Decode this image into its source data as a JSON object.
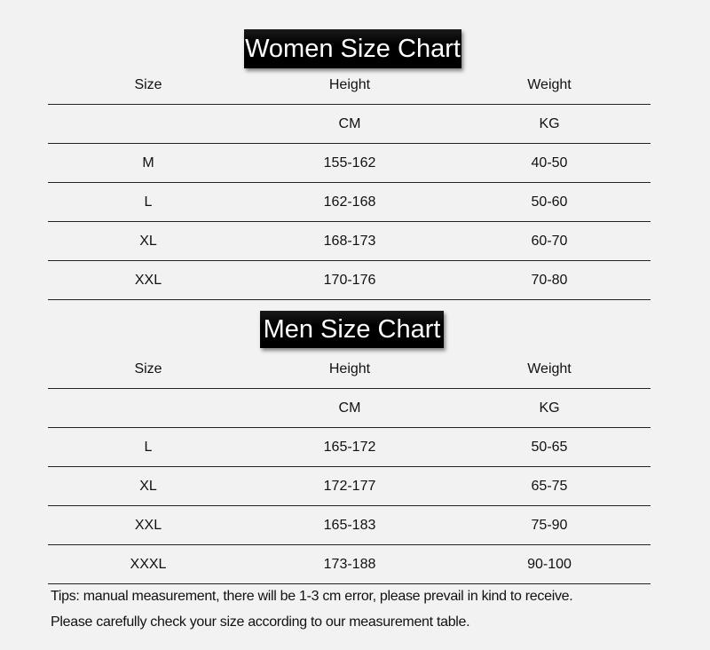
{
  "women": {
    "title": "Women Size Chart",
    "header": [
      "Size",
      "Height",
      "Weight"
    ],
    "units": [
      "",
      "CM",
      "KG"
    ],
    "rows": [
      [
        "M",
        "155-162",
        "40-50"
      ],
      [
        "L",
        "162-168",
        "50-60"
      ],
      [
        "XL",
        "168-173",
        "60-70"
      ],
      [
        "XXL",
        "170-176",
        "70-80"
      ]
    ]
  },
  "men": {
    "title": "Men Size Chart",
    "header": [
      "Size",
      "Height",
      "Weight"
    ],
    "units": [
      "",
      "CM",
      "KG"
    ],
    "rows": [
      [
        "L",
        "165-172",
        "50-65"
      ],
      [
        "XL",
        "172-177",
        "65-75"
      ],
      [
        "XXL",
        "165-183",
        "75-90"
      ],
      [
        "XXXL",
        "173-188",
        "90-100"
      ]
    ]
  },
  "tips": [
    "Tips: manual measurement, there will be 1-3 cm error, please prevail in kind to receive.",
    "Please carefully check your size according to our measurement table."
  ]
}
